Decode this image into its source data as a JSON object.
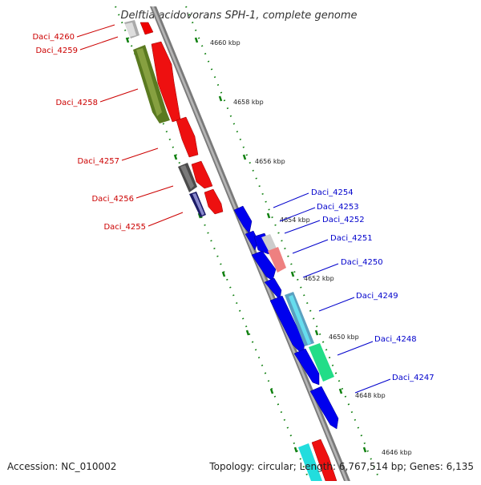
{
  "title": "Delftia acidovorans SPH-1, complete genome",
  "accession": "Accession: NC_010002",
  "summary": "Topology: circular; Length: 6,767,514 bp; Genes: 6,135",
  "kbp_labels": [
    "4660 kbp",
    "4658 kbp",
    "4656 kbp",
    "4654 kbp",
    "4652 kbp",
    "4650 kbp",
    "4648 kbp",
    "4646 kbp"
  ],
  "left_genes": [
    "Daci_4260",
    "Daci_4259",
    "Daci_4258",
    "Daci_4257",
    "Daci_4256",
    "Daci_4255"
  ],
  "right_genes": [
    "Daci_4254",
    "Daci_4253",
    "Daci_4252",
    "Daci_4251",
    "Daci_4250",
    "Daci_4249",
    "Daci_4248",
    "Daci_4247"
  ],
  "colors": {
    "forward_gene": "#ff0000",
    "reverse_gene": "#0000ff",
    "backbone": "#808080",
    "tick": "#008000",
    "left_label": "#cc0000",
    "right_label": "#0000cc"
  }
}
